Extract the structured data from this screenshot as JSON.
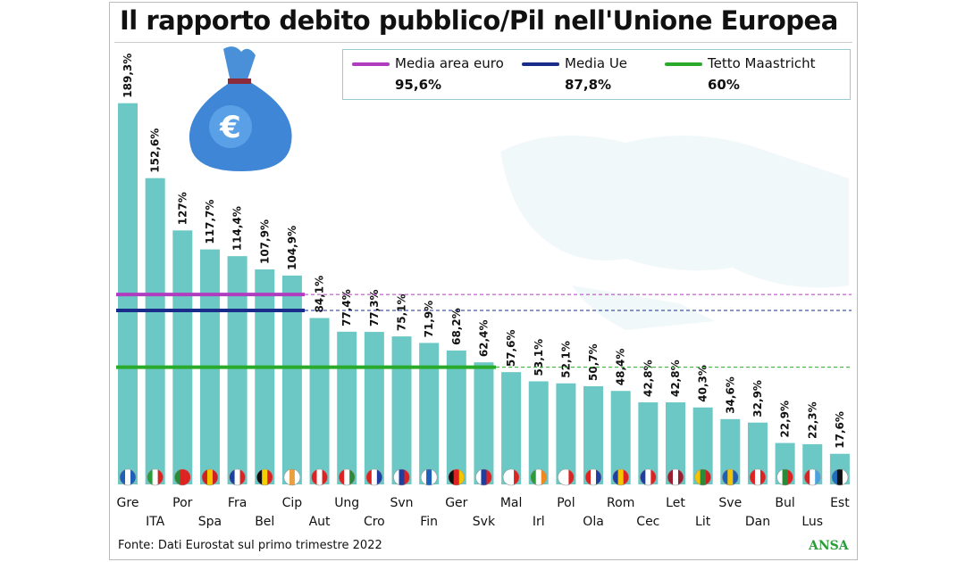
{
  "title": "Il rapporto debito pubblico/Pil nell'Unione Europea",
  "footer": "Fonte: Dati Eurostat sul primo trimestre 2022",
  "logo": "ANSA",
  "chart_data": {
    "type": "bar",
    "title": "Il rapporto debito pubblico/Pil nell'Unione Europea",
    "categories": [
      "Gre",
      "ITA",
      "Por",
      "Spa",
      "Fra",
      "Bel",
      "Cip",
      "Aut",
      "Ung",
      "Cro",
      "Svn",
      "Fin",
      "Ger",
      "Svk",
      "Mal",
      "Irl",
      "Pol",
      "Ola",
      "Rom",
      "Cec",
      "Let",
      "Lit",
      "Sve",
      "Dan",
      "Bul",
      "Lus",
      "Est"
    ],
    "values": [
      189.3,
      152.6,
      127,
      117.7,
      114.4,
      107.9,
      104.9,
      84.1,
      77.4,
      77.3,
      75.1,
      71.9,
      68.2,
      62.4,
      57.6,
      53.1,
      52.1,
      50.7,
      48.4,
      42.8,
      42.8,
      40.3,
      34.6,
      32.9,
      22.9,
      22.3,
      17.6
    ],
    "labels": [
      "189,3%",
      "152,6%",
      "127%",
      "117,7%",
      "114,4%",
      "107,9%",
      "104,9%",
      "84,1%",
      "77,4%",
      "77,3%",
      "75,1%",
      "71,9%",
      "68,2%",
      "62,4%",
      "57,6%",
      "53,1%",
      "52,1%",
      "50,7%",
      "48,4%",
      "42,8%",
      "42,8%",
      "40,3%",
      "34,6%",
      "32,9%",
      "22,9%",
      "22,3%",
      "17,6%"
    ],
    "bar_color": "#6cc8c4",
    "reference_lines": [
      {
        "name": "Media area euro",
        "value": 95.6,
        "label": "95,6%",
        "color": "#b03cc0"
      },
      {
        "name": "Media Ue",
        "value": 87.8,
        "label": "87,8%",
        "color": "#1a2c8a"
      },
      {
        "name": "Tetto Maastricht",
        "value": 60,
        "label": "60%",
        "color": "#2aaa2a"
      }
    ],
    "legend_position": "top-right",
    "grid": false,
    "ylim": [
      0,
      190
    ]
  },
  "flags": [
    [
      "#1e5fb8",
      "#fff",
      "#1e5fb8"
    ],
    [
      "#2a9d3a",
      "#fff",
      "#d22"
    ],
    [
      "#2a8a3a",
      "#d22",
      "#d22"
    ],
    [
      "#c22",
      "#f5c400",
      "#c22"
    ],
    [
      "#1e3fa0",
      "#fff",
      "#d22"
    ],
    [
      "#111",
      "#f5d000",
      "#d22"
    ],
    [
      "#fff",
      "#e8a040",
      "#fff"
    ],
    [
      "#d22",
      "#fff",
      "#d22"
    ],
    [
      "#d22",
      "#fff",
      "#2a8a3a"
    ],
    [
      "#d22",
      "#fff",
      "#1e3fa0"
    ],
    [
      "#fff",
      "#1e3fa0",
      "#d22"
    ],
    [
      "#fff",
      "#1e5fb8",
      "#fff"
    ],
    [
      "#111",
      "#d22",
      "#f5c400"
    ],
    [
      "#fff",
      "#1e3fa0",
      "#d22"
    ],
    [
      "#fff",
      "#fff",
      "#d22"
    ],
    [
      "#2a9d3a",
      "#fff",
      "#f08a20"
    ],
    [
      "#fff",
      "#fff",
      "#d22"
    ],
    [
      "#d22",
      "#fff",
      "#1e3fa0"
    ],
    [
      "#1e3fa0",
      "#f5c400",
      "#d22"
    ],
    [
      "#1e3fa0",
      "#fff",
      "#d22"
    ],
    [
      "#9a2030",
      "#fff",
      "#9a2030"
    ],
    [
      "#f5c400",
      "#2a8a3a",
      "#c22"
    ],
    [
      "#1e5fb8",
      "#f5c400",
      "#1e5fb8"
    ],
    [
      "#d22",
      "#fff",
      "#d22"
    ],
    [
      "#fff",
      "#2a8a3a",
      "#d22"
    ],
    [
      "#d22",
      "#fff",
      "#4aa0e0"
    ],
    [
      "#1e6fc0",
      "#111",
      "#fff"
    ]
  ]
}
